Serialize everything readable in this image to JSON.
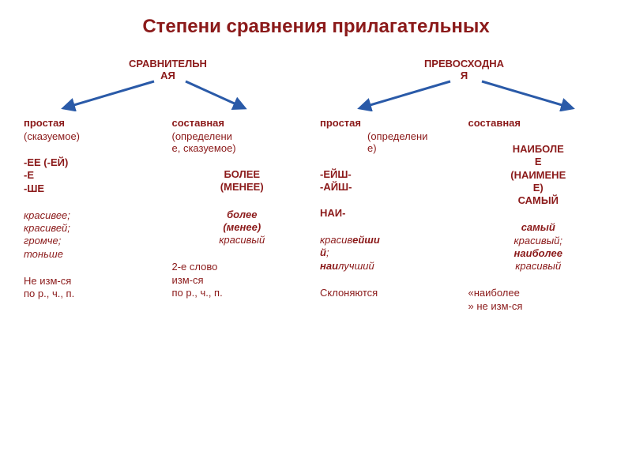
{
  "title": "Степени сравнения прилагательных",
  "title_color": "#8b1a1a",
  "title_fontsize": 24,
  "header_color": "#8b1a1a",
  "header_fontsize": 13,
  "body_fontsize": 13,
  "body_color": "#8b1a1a",
  "arrow_color": "#2a5aa8",
  "arrow_stroke_width": 3,
  "background_color": "#ffffff",
  "left": {
    "header": "СРАВНИТЕЛЬН\nАЯ",
    "cols": [
      {
        "title": "простая",
        "note": "(сказуемое)",
        "blocks": [
          [
            "-ЕЕ (-ЕЙ)",
            "-Е",
            "-ШЕ"
          ],
          [
            "красив<i>ее</i>;",
            "красив<i>ей</i>;",
            "громч<i>е</i>;",
            "тонь<i>ше</i>"
          ],
          [
            "Не изм-ся",
            " по р., ч., п."
          ]
        ],
        "block_styles": [
          "bold",
          "italic",
          ""
        ]
      },
      {
        "title": "составная",
        "note": "(определени\nе, сказуемое)",
        "blocks": [
          [
            "БОЛЕЕ",
            "(МЕНЕЕ)"
          ],
          [
            "<b>более</b>",
            "<b>(менее)</b>",
            "красивый"
          ],
          [
            "2-е слово",
            "изм-ся",
            "по р., ч., п."
          ]
        ],
        "block_styles": [
          "bold center",
          "italic center",
          ""
        ]
      }
    ]
  },
  "right": {
    "header": "ПРЕВОСХОДНА\nЯ",
    "cols": [
      {
        "title": "простая",
        "note": "(определени\nе)",
        "note_offset": true,
        "blocks": [
          [
            "-ЕЙШ-",
            "-АЙШ-",
            "",
            "НАИ-"
          ],
          [
            "красив<b>ейши</b>",
            "<b>й</b>;",
            "<b>наи</b>лучший"
          ],
          [
            "Склоняются"
          ]
        ],
        "block_styles": [
          "bold",
          "italic",
          ""
        ]
      },
      {
        "title": "составная",
        "note": "",
        "blocks": [
          [
            "НАИБОЛЕ",
            "Е",
            "(НАИМЕНЕ",
            "Е)",
            "САМЫЙ"
          ],
          [
            "<b>самый</b>",
            "красивый;",
            "<b>наиболее</b>",
            "красивый"
          ],
          [
            "«наиболее",
            "» не изм-ся"
          ]
        ],
        "block_styles": [
          "bold center",
          "italic center",
          ""
        ]
      }
    ]
  }
}
